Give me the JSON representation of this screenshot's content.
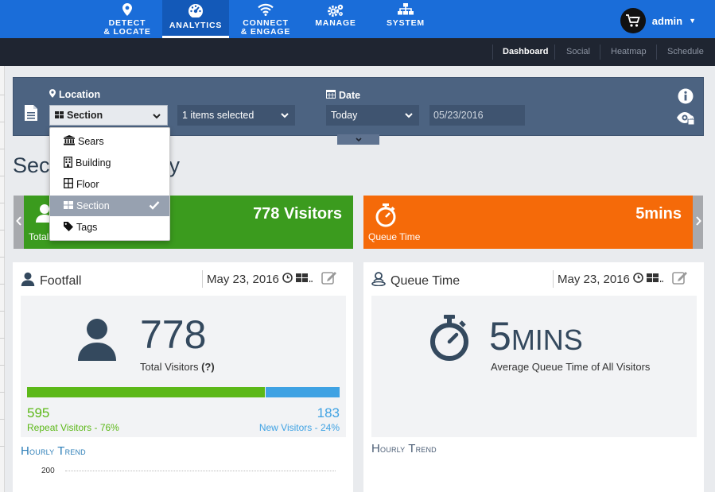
{
  "topnav": {
    "items": [
      {
        "line1": "DETECT",
        "line2": "& LOCATE",
        "icon": "map-marker-icon"
      },
      {
        "line1": "ANALYTICS",
        "line2": "",
        "icon": "dashboard-gauge-icon"
      },
      {
        "line1": "CONNECT",
        "line2": "& ENGAGE",
        "icon": "wifi-icon"
      },
      {
        "line1": "MANAGE",
        "line2": "",
        "icon": "gears-icon"
      },
      {
        "line1": "SYSTEM",
        "line2": "",
        "icon": "sitemap-icon"
      }
    ],
    "active": "ANALYTICS",
    "user": "admin"
  },
  "subnav": {
    "tabs": [
      "Dashboard",
      "Social",
      "Heatmap",
      "Schedule"
    ],
    "active": "Dashboard"
  },
  "filter": {
    "location_label": "Location",
    "location_select": "Section",
    "items_select": "1 items selected",
    "date_label": "Date",
    "date_select": "Today",
    "date_value": "05/23/2016"
  },
  "dropdown": {
    "items": [
      {
        "label": "Sears",
        "icon": "institution-icon"
      },
      {
        "label": "Building",
        "icon": "building-icon"
      },
      {
        "label": "Floor",
        "icon": "floor-grid-icon"
      },
      {
        "label": "Section",
        "icon": "section-grid-icon"
      },
      {
        "label": "Tags",
        "icon": "tag-icon"
      }
    ],
    "selected": "Section"
  },
  "page": {
    "heading_visible_start": "Sec",
    "heading_visible_end": "y"
  },
  "kpis": {
    "visitors_value": "778 Visitors",
    "visitors_label_visible": "Total",
    "queue_value": "5mins",
    "queue_label": "Queue Time"
  },
  "footfall": {
    "title": "Footfall",
    "date": "May 23, 2016",
    "total": "778",
    "total_label": "Total Visitors",
    "help": "(?)",
    "repeat_count": "595",
    "repeat_label": "Repeat Visitors - 76%",
    "new_count": "183",
    "new_label": "New Visitors - 24%",
    "repeat_share": 0.76,
    "trend_title_first": "H",
    "trend_title_rest": "ourly",
    "trend_title2_first": "T",
    "trend_title2_rest": "rend",
    "y_tick": "200"
  },
  "queue": {
    "title": "Queue Time",
    "date": "May 23, 2016",
    "value_first": "5",
    "value_rest": "MINS",
    "label": "Average Queue Time of All Visitors",
    "trend_title_first": "H",
    "trend_title_rest": "ourly",
    "trend_title2_first": "T",
    "trend_title2_rest": "rend"
  },
  "colors": {
    "nav_blue": "#1a6dd9",
    "green": "#3b9b1e",
    "orange": "#f56a09",
    "bar_green": "#5cb818",
    "bar_blue": "#3fa2e3"
  }
}
